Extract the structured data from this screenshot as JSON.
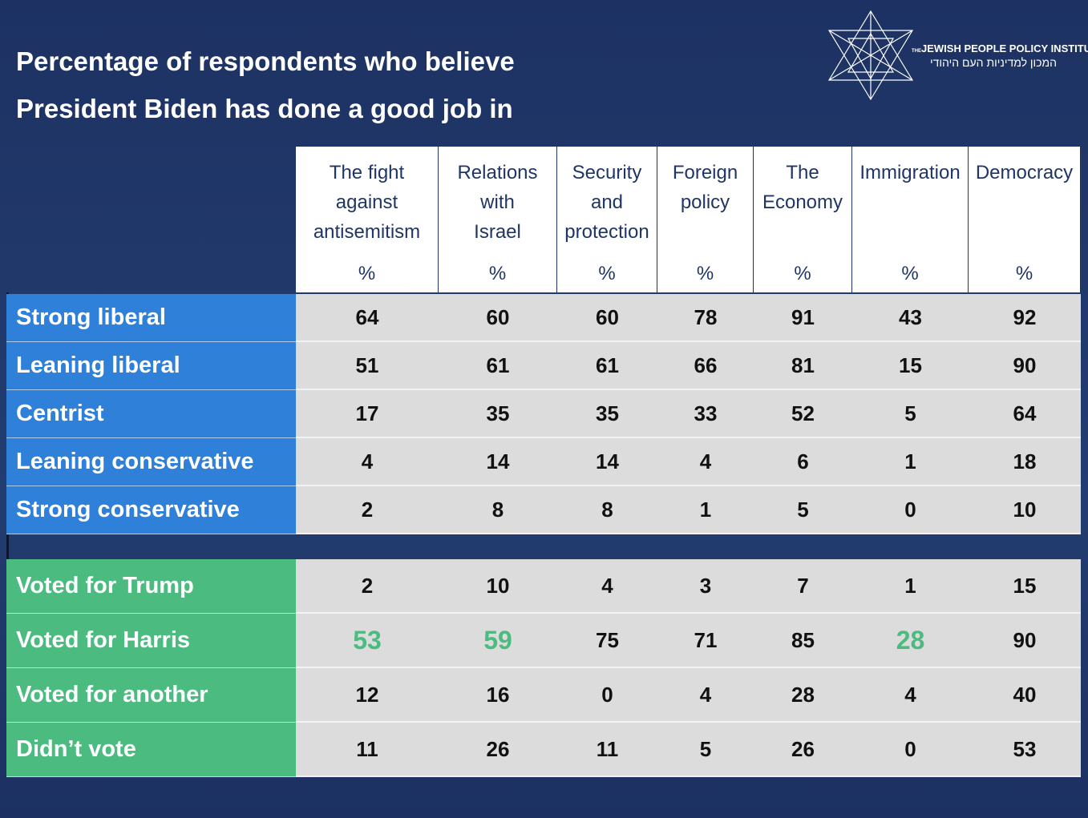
{
  "header": {
    "title_lines": [
      "Percentage of respondents who believe",
      "President Biden has done a good job in"
    ],
    "logo": {
      "prefix": "THE",
      "name": "JEWISH PEOPLE POLICY INSTITUTE",
      "hebrew": "המכון למדיניות העם היהודי"
    }
  },
  "table": {
    "columns": [
      {
        "lines": [
          "The fight",
          "against",
          "antisemitism"
        ],
        "unit": "%"
      },
      {
        "lines": [
          "Relations",
          "with",
          "Israel"
        ],
        "unit": "%"
      },
      {
        "lines": [
          "Security",
          "and",
          "protection"
        ],
        "unit": "%"
      },
      {
        "lines": [
          "Foreign",
          "policy"
        ],
        "unit": "%"
      },
      {
        "lines": [
          "The",
          "Economy"
        ],
        "unit": "%"
      },
      {
        "lines": [
          "Immigration"
        ],
        "unit": "%"
      },
      {
        "lines": [
          "Democracy"
        ],
        "unit": "%"
      }
    ],
    "groups": [
      {
        "color": "#2f80d8",
        "rows": [
          {
            "label": "Strong liberal",
            "values": [
              64,
              60,
              60,
              78,
              91,
              43,
              92
            ]
          },
          {
            "label": "Leaning liberal",
            "values": [
              51,
              61,
              61,
              66,
              81,
              15,
              90
            ]
          },
          {
            "label": "Centrist",
            "values": [
              17,
              35,
              35,
              33,
              52,
              5,
              64
            ]
          },
          {
            "label": "Leaning conservative",
            "values": [
              4,
              14,
              14,
              4,
              6,
              1,
              18
            ]
          },
          {
            "label": "Strong conservative",
            "values": [
              2,
              8,
              8,
              1,
              5,
              0,
              10
            ]
          }
        ]
      },
      {
        "color": "#4cbb80",
        "rows": [
          {
            "label": "Voted for Trump",
            "values": [
              2,
              10,
              4,
              3,
              7,
              1,
              15
            ]
          },
          {
            "label": "Voted for Harris",
            "values": [
              53,
              59,
              75,
              71,
              85,
              28,
              90
            ],
            "highlight": {
              "color": "#4cbb80",
              "columns": [
                0,
                1,
                5
              ]
            }
          },
          {
            "label": "Voted for another",
            "values": [
              12,
              16,
              0,
              4,
              28,
              4,
              40
            ]
          },
          {
            "label": "Didn’t vote",
            "values": [
              11,
              26,
              11,
              5,
              26,
              0,
              53
            ]
          }
        ]
      }
    ]
  }
}
